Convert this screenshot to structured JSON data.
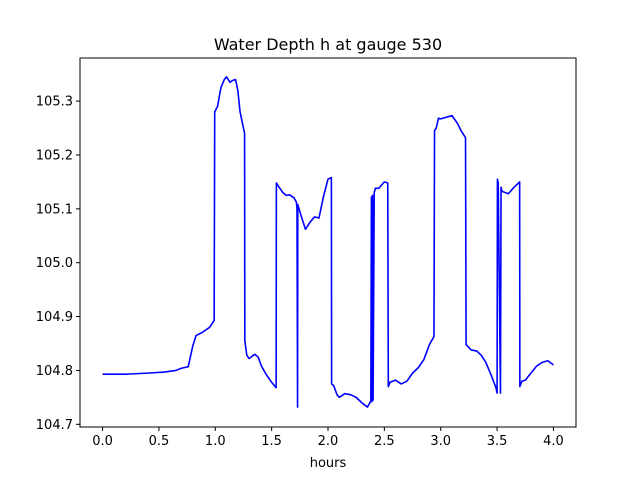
{
  "chart_data": {
    "type": "line",
    "title": "Water Depth h at gauge 530",
    "xlabel": "hours",
    "ylabel": "",
    "xlim": [
      -0.2,
      4.2
    ],
    "ylim": [
      104.695,
      105.38
    ],
    "xticks": [
      0.0,
      0.5,
      1.0,
      1.5,
      2.0,
      2.5,
      3.0,
      3.5,
      4.0
    ],
    "xtick_labels": [
      "0.0",
      "0.5",
      "1.0",
      "1.5",
      "2.0",
      "2.5",
      "3.0",
      "3.5",
      "4.0"
    ],
    "yticks": [
      104.7,
      104.8,
      104.9,
      105.0,
      105.1,
      105.2,
      105.3
    ],
    "ytick_labels": [
      "104.7",
      "104.8",
      "104.9",
      "105.0",
      "105.1",
      "105.2",
      "105.3"
    ],
    "grid": false,
    "legend": "none",
    "series": [
      {
        "color": "#0000ff",
        "x": [
          0.0,
          0.2,
          0.4,
          0.55,
          0.65,
          0.7,
          0.76,
          0.8,
          0.83,
          0.88,
          0.95,
          0.99,
          0.995,
          1.02,
          1.05,
          1.08,
          1.1,
          1.13,
          1.15,
          1.18,
          1.2,
          1.22,
          1.25,
          1.26,
          1.262,
          1.28,
          1.3,
          1.35,
          1.38,
          1.41,
          1.45,
          1.5,
          1.54,
          1.542,
          1.56,
          1.6,
          1.63,
          1.66,
          1.7,
          1.72,
          1.725,
          1.73,
          1.732,
          1.76,
          1.8,
          1.84,
          1.88,
          1.92,
          1.96,
          2.0,
          2.03,
          2.032,
          2.05,
          2.08,
          2.1,
          2.15,
          2.2,
          2.25,
          2.3,
          2.35,
          2.38,
          2.385,
          2.39,
          2.395,
          2.4,
          2.41,
          2.42,
          2.45,
          2.5,
          2.53,
          2.535,
          2.55,
          2.6,
          2.65,
          2.7,
          2.75,
          2.8,
          2.85,
          2.9,
          2.94,
          2.945,
          2.96,
          2.98,
          3.0,
          3.05,
          3.1,
          3.15,
          3.18,
          3.22,
          3.225,
          3.27,
          3.32,
          3.36,
          3.4,
          3.45,
          3.49,
          3.5,
          3.503,
          3.51,
          3.53,
          3.535,
          3.54,
          3.55,
          3.6,
          3.65,
          3.7,
          3.702,
          3.72,
          3.75,
          3.8,
          3.85,
          3.9,
          3.95,
          4.0
        ],
        "y": [
          104.793,
          104.793,
          104.795,
          104.797,
          104.8,
          104.804,
          104.807,
          104.845,
          104.865,
          104.87,
          104.88,
          104.893,
          105.28,
          105.29,
          105.325,
          105.34,
          105.345,
          105.335,
          105.338,
          105.34,
          105.32,
          105.28,
          105.25,
          105.24,
          104.855,
          104.828,
          104.822,
          104.83,
          104.825,
          104.808,
          104.793,
          104.778,
          104.768,
          105.148,
          105.142,
          105.13,
          105.125,
          105.126,
          105.12,
          105.112,
          105.1,
          104.732,
          105.108,
          105.088,
          105.062,
          105.075,
          105.085,
          105.083,
          105.123,
          105.155,
          105.158,
          104.775,
          104.772,
          104.755,
          104.75,
          104.757,
          104.755,
          104.75,
          104.74,
          104.732,
          104.743,
          105.122,
          104.742,
          105.125,
          104.745,
          105.13,
          105.138,
          105.138,
          105.15,
          105.148,
          104.77,
          104.778,
          104.782,
          104.775,
          104.78,
          104.795,
          104.805,
          104.82,
          104.848,
          104.863,
          105.245,
          105.25,
          105.268,
          105.267,
          105.27,
          105.273,
          105.258,
          105.245,
          105.232,
          104.848,
          104.838,
          104.836,
          104.828,
          104.815,
          104.79,
          104.768,
          104.758,
          105.155,
          105.148,
          104.758,
          105.14,
          105.135,
          105.132,
          105.128,
          105.14,
          105.15,
          104.77,
          104.78,
          104.782,
          104.795,
          104.808,
          104.815,
          104.818,
          104.81
        ]
      }
    ]
  }
}
